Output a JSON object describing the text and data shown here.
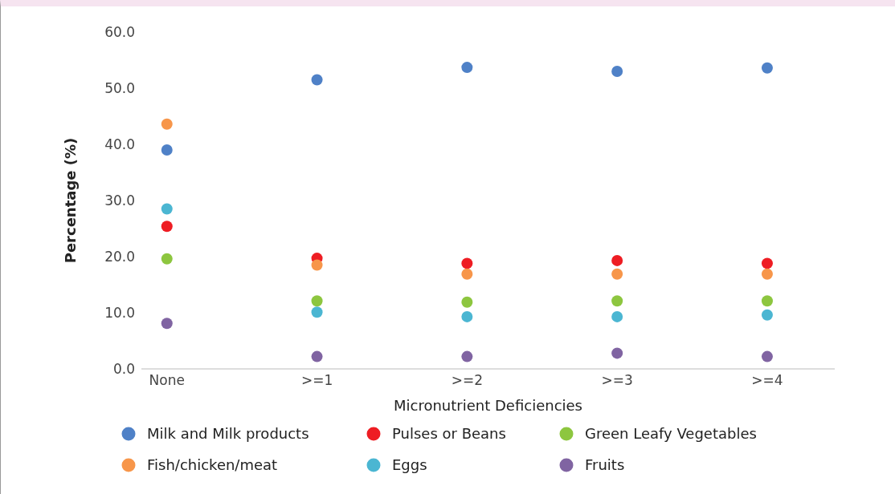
{
  "chart_data": {
    "type": "scatter",
    "xlabel": "Micronutrient Deficiencies",
    "ylabel": "Percentage (%)",
    "categories": [
      "None",
      ">=1",
      ">=2",
      ">=3",
      ">=4"
    ],
    "ylim": [
      0,
      60
    ],
    "yticks": [
      {
        "value": 0,
        "label": "0.0"
      },
      {
        "value": 10,
        "label": "10.0"
      },
      {
        "value": 20,
        "label": "20.0"
      },
      {
        "value": 30,
        "label": "30.0"
      },
      {
        "value": 40,
        "label": "40.0"
      },
      {
        "value": 50,
        "label": "50.0"
      },
      {
        "value": 60,
        "label": "60.0"
      }
    ],
    "grid": false,
    "legend": "bottom",
    "marker": "circle",
    "series": [
      {
        "name": "Milk and Milk products",
        "color": "#4f81c7",
        "values": [
          39.0,
          51.5,
          53.7,
          53.0,
          53.6
        ]
      },
      {
        "name": "Pulses or Beans",
        "color": "#ee1d23",
        "values": [
          25.4,
          19.7,
          18.8,
          19.3,
          18.8
        ]
      },
      {
        "name": "Green Leafy Vegetables",
        "color": "#8dc63f",
        "values": [
          19.6,
          12.1,
          11.9,
          12.1,
          12.1
        ]
      },
      {
        "name": "Fish/chicken/meat",
        "color": "#f7964a",
        "values": [
          43.6,
          18.5,
          16.9,
          16.9,
          16.9
        ]
      },
      {
        "name": "Eggs",
        "color": "#4bb6d2",
        "values": [
          28.5,
          10.1,
          9.3,
          9.3,
          9.6
        ]
      },
      {
        "name": "Fruits",
        "color": "#8064a2",
        "values": [
          8.1,
          2.2,
          2.2,
          2.8,
          2.2
        ]
      }
    ]
  }
}
